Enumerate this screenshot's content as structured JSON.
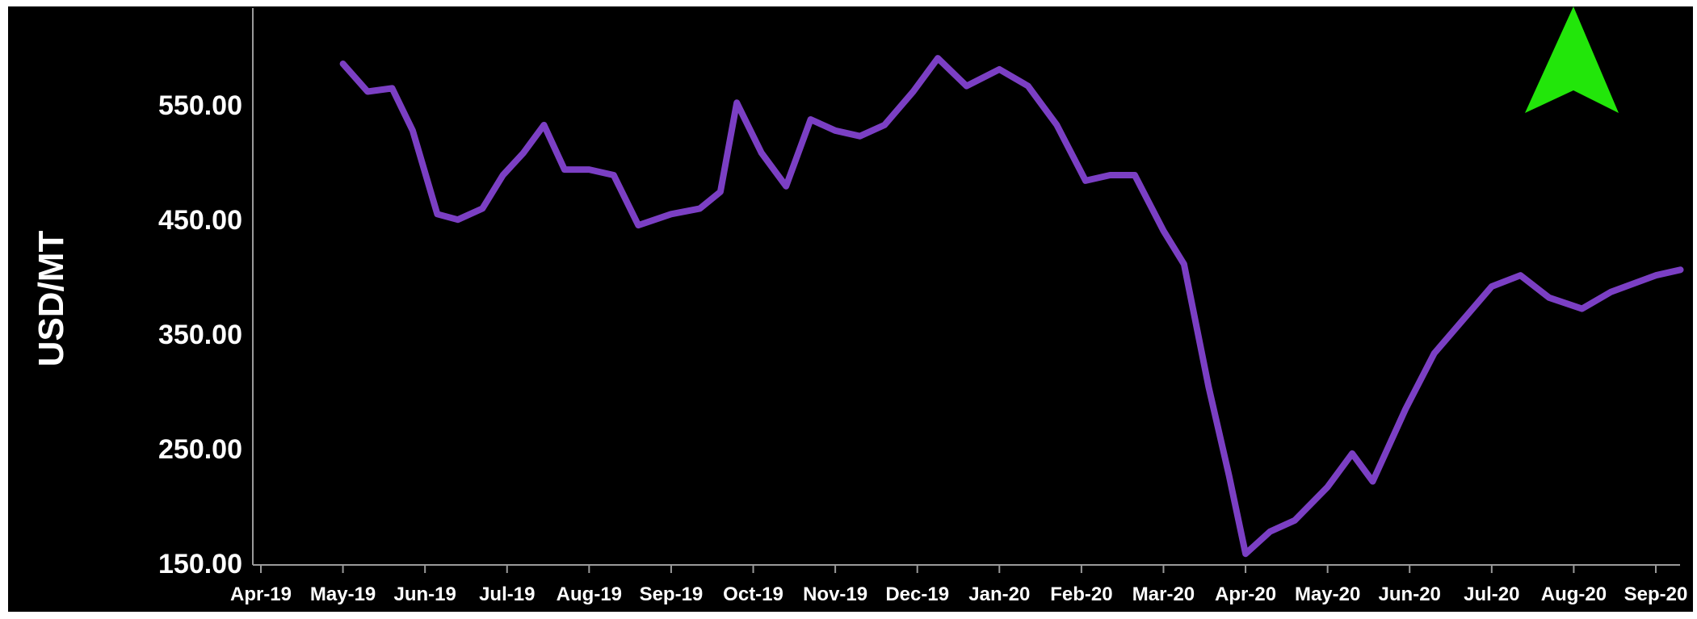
{
  "chart_data": {
    "type": "line",
    "title": "",
    "xlabel": "",
    "ylabel": "USD/MT",
    "ylim": [
      150,
      650
    ],
    "yticks": [
      "550.00",
      "450.00",
      "350.00",
      "250.00",
      "150.00"
    ],
    "ytick_values": [
      550,
      450,
      350,
      250,
      150
    ],
    "xticks": [
      "Apr-19",
      "May-19",
      "Jun-19",
      "Jul-19",
      "Aug-19",
      "Sep-19",
      "Oct-19",
      "Nov-19",
      "Dec-19",
      "Jan-20",
      "Feb-20",
      "Mar-20",
      "Apr-20",
      "May-20",
      "Jun-20",
      "Jul-20",
      "Aug-20",
      "Sep-20"
    ],
    "grid": false,
    "legend": "none",
    "series": [
      {
        "color": "#7B3FC4",
        "points": [
          [
            "May-19",
            600
          ],
          [
            "May-19 (mid)",
            575
          ],
          [
            "May-19 (late)",
            578
          ],
          [
            "Jun-19 (early)",
            540
          ],
          [
            "Jun-19",
            465
          ],
          [
            "Jun-19 (mid)",
            460
          ],
          [
            "Jun-19 (late)",
            470
          ],
          [
            "Jul-19 (early)",
            500
          ],
          [
            "Jul-19",
            520
          ],
          [
            "Jul-19 (mid)",
            545
          ],
          [
            "Jul-19 (late)",
            505
          ],
          [
            "Aug-19",
            505
          ],
          [
            "Aug-19 (mid)",
            500
          ],
          [
            "Aug-19 (late)",
            455
          ],
          [
            "Sep-19",
            465
          ],
          [
            "Sep-19 (mid)",
            470
          ],
          [
            "Sep-19 (late)",
            485
          ],
          [
            "Oct-19 (early)",
            565
          ],
          [
            "Oct-19",
            520
          ],
          [
            "Oct-19 (mid)",
            490
          ],
          [
            "Oct-19 (late)",
            550
          ],
          [
            "Nov-19",
            540
          ],
          [
            "Nov-19 (mid)",
            535
          ],
          [
            "Nov-19 (late)",
            545
          ],
          [
            "Dec-19",
            575
          ],
          [
            "Dec-19 (mid)",
            605
          ],
          [
            "Dec-19 (late)",
            580
          ],
          [
            "Jan-20",
            595
          ],
          [
            "Jan-20 (mid)",
            580
          ],
          [
            "Jan-20 (late)",
            545
          ],
          [
            "Feb-20",
            495
          ],
          [
            "Feb-20 (mid)",
            500
          ],
          [
            "Feb-20 (late)",
            500
          ],
          [
            "Mar-20",
            450
          ],
          [
            "Mar-20 (mid)",
            420
          ],
          [
            "Mar-20 (late)",
            310
          ],
          [
            "Apr-20 (early)",
            230
          ],
          [
            "Apr-20",
            160
          ],
          [
            "Apr-20 (mid)",
            180
          ],
          [
            "Apr-20 (late)",
            190
          ],
          [
            "May-20",
            220
          ],
          [
            "May-20 (mid)",
            250
          ],
          [
            "May-20 (late)",
            225
          ],
          [
            "Jun-20",
            290
          ],
          [
            "Jun-20 (mid)",
            340
          ],
          [
            "Jun-20 (late)",
            370
          ],
          [
            "Jul-20",
            400
          ],
          [
            "Jul-20 (mid)",
            410
          ],
          [
            "Jul-20 (late)",
            390
          ],
          [
            "Aug-20",
            380
          ],
          [
            "Aug-20 (mid)",
            395
          ],
          [
            "Sep-20",
            410
          ],
          [
            "Sep-20 (mid)",
            415
          ]
        ],
        "values": [
          600,
          575,
          578,
          540,
          465,
          460,
          470,
          500,
          520,
          545,
          505,
          505,
          500,
          455,
          465,
          470,
          485,
          565,
          520,
          490,
          550,
          540,
          535,
          545,
          575,
          605,
          580,
          595,
          580,
          545,
          495,
          500,
          500,
          450,
          420,
          310,
          230,
          160,
          180,
          190,
          220,
          250,
          225,
          290,
          340,
          370,
          400,
          410,
          390,
          380,
          395,
          410,
          415
        ],
        "x_pos": [
          1.0,
          1.3,
          1.6,
          1.85,
          2.15,
          2.4,
          2.7,
          2.95,
          3.2,
          3.45,
          3.7,
          4.0,
          4.3,
          4.6,
          5.0,
          5.35,
          5.6,
          5.8,
          6.1,
          6.4,
          6.7,
          7.0,
          7.3,
          7.6,
          7.95,
          8.25,
          8.6,
          9.0,
          9.35,
          9.7,
          10.05,
          10.35,
          10.65,
          11.0,
          11.25,
          11.55,
          11.8,
          12.0,
          12.3,
          12.6,
          13.0,
          13.3,
          13.55,
          13.95,
          14.3,
          14.65,
          15.0,
          15.35,
          15.7,
          16.1,
          16.45,
          17.0,
          17.3
        ]
      }
    ]
  },
  "indicator": {
    "icon": "up-arrow-icon",
    "color": "#22E60A"
  }
}
